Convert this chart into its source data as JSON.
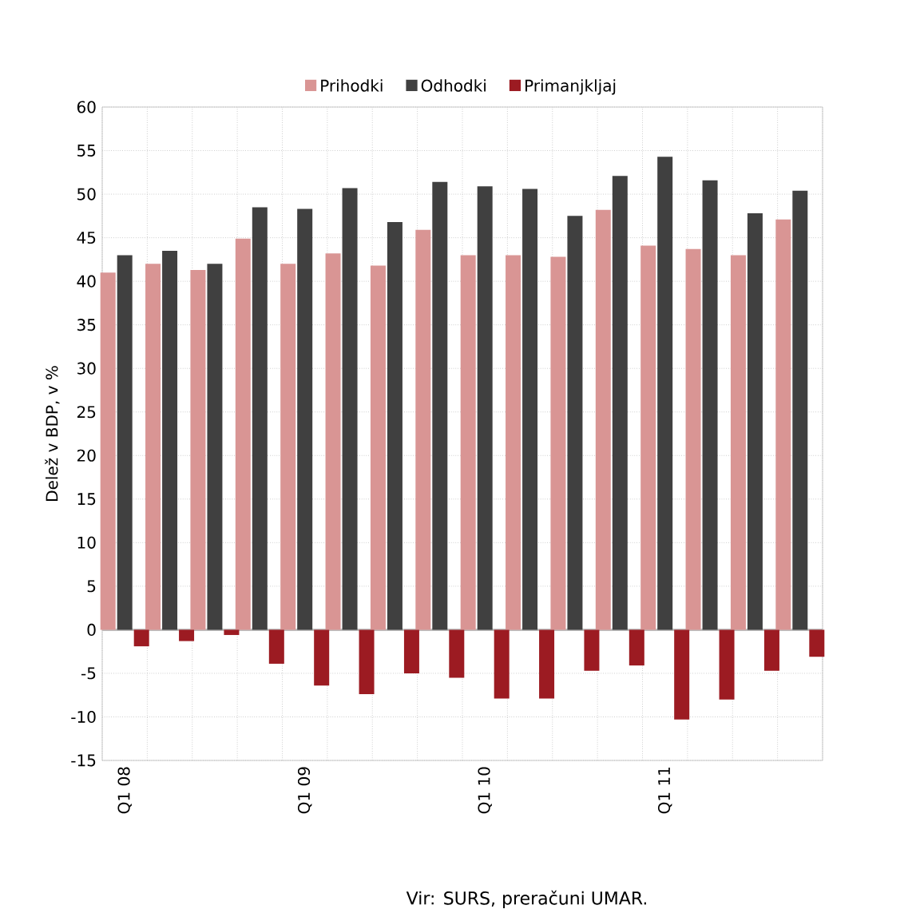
{
  "chart_data": {
    "type": "bar",
    "ylabel": "Delež v BDP, v %",
    "categories": [
      "Q1 08",
      null,
      null,
      null,
      "Q1 09",
      null,
      null,
      null,
      "Q1 10",
      null,
      null,
      null,
      "Q1 11",
      null,
      null,
      null
    ],
    "series": [
      {
        "name": "Prihodki",
        "color": "#d99594",
        "values": [
          41.0,
          42.0,
          41.3,
          44.9,
          42.0,
          43.2,
          41.8,
          45.9,
          43.0,
          43.0,
          42.8,
          48.2,
          44.1,
          43.7,
          43.0,
          47.1
        ]
      },
      {
        "name": "Odhodki",
        "color": "#404040",
        "values": [
          43.0,
          43.5,
          42.0,
          48.5,
          48.3,
          50.7,
          46.8,
          51.4,
          50.9,
          50.6,
          47.5,
          52.1,
          54.3,
          51.6,
          47.8,
          50.4
        ]
      },
      {
        "name": "Primanjkljaj",
        "color": "#9c1b22",
        "values": [
          -1.9,
          -1.3,
          -0.6,
          -3.9,
          -6.4,
          -7.4,
          -5.0,
          -5.5,
          -7.9,
          -7.9,
          -4.7,
          -4.1,
          -10.3,
          -8.0,
          -4.7,
          -3.1
        ]
      }
    ],
    "ylim": [
      -15,
      60
    ],
    "yticks": [
      -15,
      -10,
      -5,
      0,
      5,
      10,
      15,
      20,
      25,
      30,
      35,
      40,
      45,
      50,
      55,
      60
    ],
    "grid": true,
    "legend": "top",
    "annotations": [
      "Vir: SURS, preračuni UMAR."
    ]
  }
}
